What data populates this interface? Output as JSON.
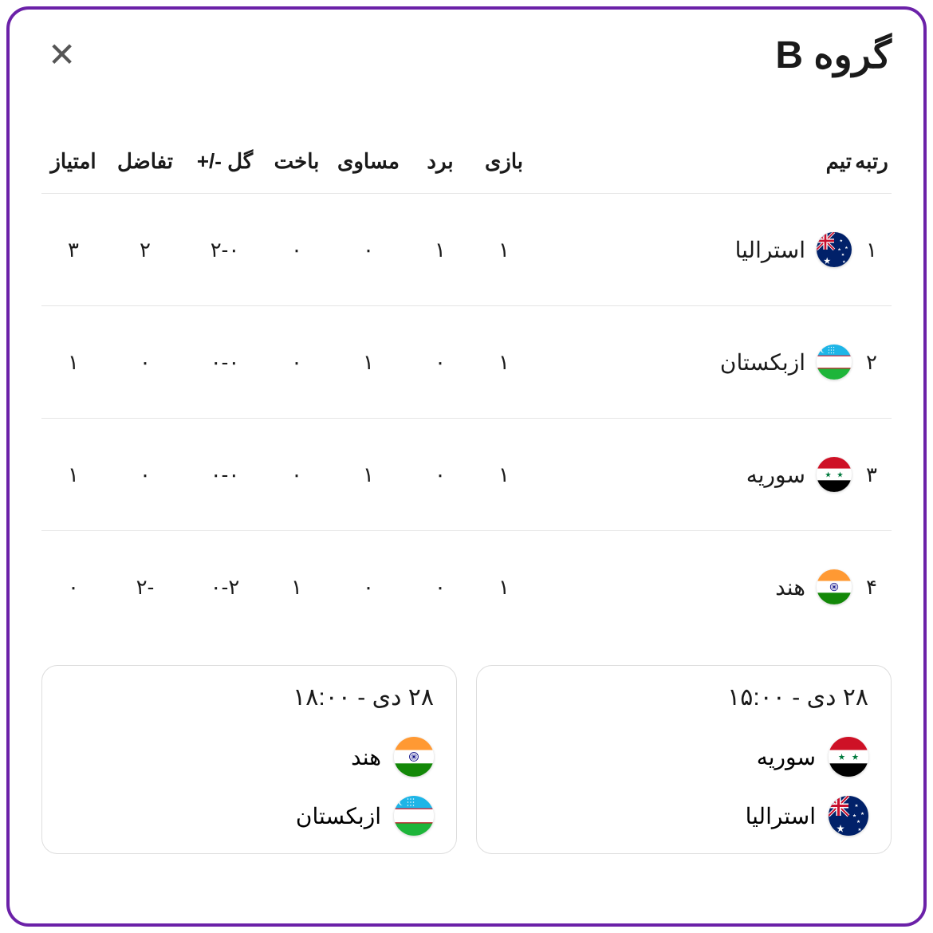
{
  "title": "گروه B",
  "headers": {
    "rank": "رتبه",
    "team": "تیم",
    "played": "بازی",
    "win": "برد",
    "draw": "مساوی",
    "loss": "باخت",
    "goals": "گل -/+",
    "diff": "تفاضل",
    "points": "امتیاز"
  },
  "standings": [
    {
      "rank": "۱",
      "team": "استرالیا",
      "flag": "australia",
      "played": "۱",
      "win": "۱",
      "draw": "۰",
      "loss": "۰",
      "goals": "۲-۰",
      "diff": "۲",
      "points": "۳"
    },
    {
      "rank": "۲",
      "team": "ازبکستان",
      "flag": "uzbekistan",
      "played": "۱",
      "win": "۰",
      "draw": "۱",
      "loss": "۰",
      "goals": "۰-۰",
      "diff": "۰",
      "points": "۱"
    },
    {
      "rank": "۳",
      "team": "سوریه",
      "flag": "syria",
      "played": "۱",
      "win": "۰",
      "draw": "۱",
      "loss": "۰",
      "goals": "۰-۰",
      "diff": "۰",
      "points": "۱"
    },
    {
      "rank": "۴",
      "team": "هند",
      "flag": "india",
      "played": "۱",
      "win": "۰",
      "draw": "۰",
      "loss": "۱",
      "goals": "۰-۲",
      "diff": "-۲",
      "points": "۰"
    }
  ],
  "matches": [
    {
      "date": "۲۸ دی - ۱۵:۰۰",
      "teams": [
        {
          "name": "سوریه",
          "flag": "syria"
        },
        {
          "name": "استرالیا",
          "flag": "australia"
        }
      ]
    },
    {
      "date": "۲۸ دی - ۱۸:۰۰",
      "teams": [
        {
          "name": "هند",
          "flag": "india"
        },
        {
          "name": "ازبکستان",
          "flag": "uzbekistan"
        }
      ]
    }
  ]
}
